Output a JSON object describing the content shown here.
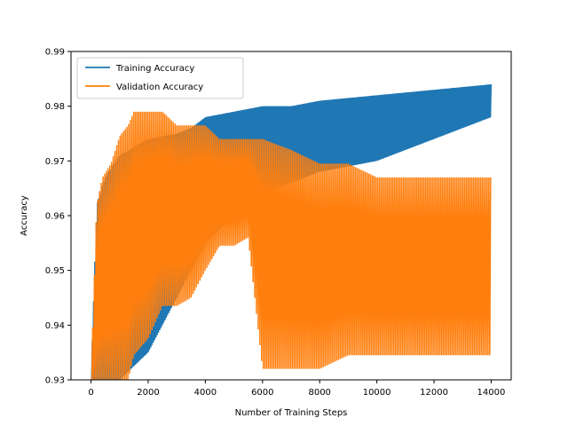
{
  "chart_data": {
    "type": "line",
    "title": "",
    "xlabel": "Number of Training Steps",
    "ylabel": "Accuracy",
    "xlim": [
      -700,
      14700
    ],
    "ylim": [
      0.93,
      0.99
    ],
    "xticks": [
      "0",
      "2000",
      "4000",
      "6000",
      "8000",
      "10000",
      "12000",
      "14000"
    ],
    "yticks": [
      "0.93",
      "0.94",
      "0.95",
      "0.96",
      "0.97",
      "0.98",
      "0.99"
    ],
    "grid": false,
    "legend_position": "upper-left",
    "series": [
      {
        "name": "Training Accuracy",
        "color": "#1f77b4",
        "note_oscillating": true,
        "x": [
          0,
          200,
          500,
          1000,
          2000,
          3000,
          3500,
          4000,
          5000,
          6000,
          7000,
          8000,
          9000,
          10000,
          11000,
          12000,
          13000,
          14000
        ],
        "upper": [
          0.93,
          0.962,
          0.967,
          0.971,
          0.974,
          0.975,
          0.976,
          0.978,
          0.979,
          0.98,
          0.98,
          0.981,
          0.9815,
          0.982,
          0.9825,
          0.983,
          0.9835,
          0.984
        ],
        "lower": [
          0.93,
          0.93,
          0.93,
          0.93,
          0.935,
          0.945,
          0.95,
          0.955,
          0.96,
          0.964,
          0.966,
          0.968,
          0.969,
          0.97,
          0.972,
          0.974,
          0.976,
          0.978
        ]
      },
      {
        "name": "Validation Accuracy",
        "color": "#ff7f0e",
        "note_oscillating": true,
        "x": [
          0,
          200,
          400,
          700,
          1000,
          1300,
          1500,
          2000,
          2500,
          3000,
          3500,
          4000,
          4500,
          5000,
          5500,
          6000,
          7000,
          8000,
          9000,
          10000,
          11000,
          12000,
          13000,
          14000
        ],
        "upper": [
          0.93,
          0.962,
          0.967,
          0.9695,
          0.9745,
          0.9765,
          0.979,
          0.979,
          0.979,
          0.9765,
          0.9765,
          0.9765,
          0.974,
          0.974,
          0.974,
          0.974,
          0.972,
          0.9695,
          0.9695,
          0.967,
          0.967,
          0.967,
          0.967,
          0.967
        ],
        "lower": [
          0.93,
          0.93,
          0.93,
          0.93,
          0.93,
          0.93,
          0.9345,
          0.9375,
          0.9435,
          0.9435,
          0.945,
          0.95,
          0.9545,
          0.9545,
          0.956,
          0.932,
          0.932,
          0.932,
          0.9345,
          0.9345,
          0.9345,
          0.9345,
          0.9345,
          0.9345
        ]
      }
    ]
  }
}
